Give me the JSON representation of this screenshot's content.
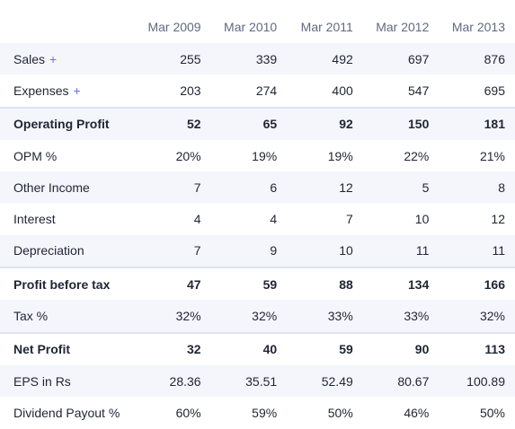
{
  "table": {
    "headers": [
      "",
      "Mar 2009",
      "Mar 2010",
      "Mar 2011",
      "Mar 2012",
      "Mar 2013"
    ],
    "rows": [
      {
        "label": "Sales",
        "plus": "+",
        "values": [
          "255",
          "339",
          "492",
          "697",
          "876"
        ],
        "bold": false,
        "stripe": true,
        "sep": false
      },
      {
        "label": "Expenses",
        "plus": "+",
        "values": [
          "203",
          "274",
          "400",
          "547",
          "695"
        ],
        "bold": false,
        "stripe": false,
        "sep": false
      },
      {
        "label": "Operating Profit",
        "plus": "",
        "values": [
          "52",
          "65",
          "92",
          "150",
          "181"
        ],
        "bold": true,
        "stripe": true,
        "sep": true
      },
      {
        "label": "OPM %",
        "plus": "",
        "values": [
          "20%",
          "19%",
          "19%",
          "22%",
          "21%"
        ],
        "bold": false,
        "stripe": false,
        "sep": false
      },
      {
        "label": "Other Income",
        "plus": "",
        "values": [
          "7",
          "6",
          "12",
          "5",
          "8"
        ],
        "bold": false,
        "stripe": true,
        "sep": false
      },
      {
        "label": "Interest",
        "plus": "",
        "values": [
          "4",
          "4",
          "7",
          "10",
          "12"
        ],
        "bold": false,
        "stripe": false,
        "sep": false
      },
      {
        "label": "Depreciation",
        "plus": "",
        "values": [
          "7",
          "9",
          "10",
          "11",
          "11"
        ],
        "bold": false,
        "stripe": true,
        "sep": false
      },
      {
        "label": "Profit before tax",
        "plus": "",
        "values": [
          "47",
          "59",
          "88",
          "134",
          "166"
        ],
        "bold": true,
        "stripe": false,
        "sep": true
      },
      {
        "label": "Tax %",
        "plus": "",
        "values": [
          "32%",
          "32%",
          "33%",
          "33%",
          "32%"
        ],
        "bold": false,
        "stripe": true,
        "sep": false
      },
      {
        "label": "Net Profit",
        "plus": "",
        "values": [
          "32",
          "40",
          "59",
          "90",
          "113"
        ],
        "bold": true,
        "stripe": false,
        "sep": true
      },
      {
        "label": "EPS in Rs",
        "plus": "",
        "values": [
          "28.36",
          "35.51",
          "52.49",
          "80.67",
          "100.89"
        ],
        "bold": false,
        "stripe": true,
        "sep": false
      },
      {
        "label": "Dividend Payout %",
        "plus": "",
        "values": [
          "60%",
          "59%",
          "50%",
          "46%",
          "50%"
        ],
        "bold": false,
        "stripe": false,
        "sep": false
      }
    ]
  },
  "colors": {
    "stripe": "#f5f6fb",
    "separator": "#dde3f1",
    "header_text": "#606a80",
    "accent_plus": "#6d6fe0"
  }
}
